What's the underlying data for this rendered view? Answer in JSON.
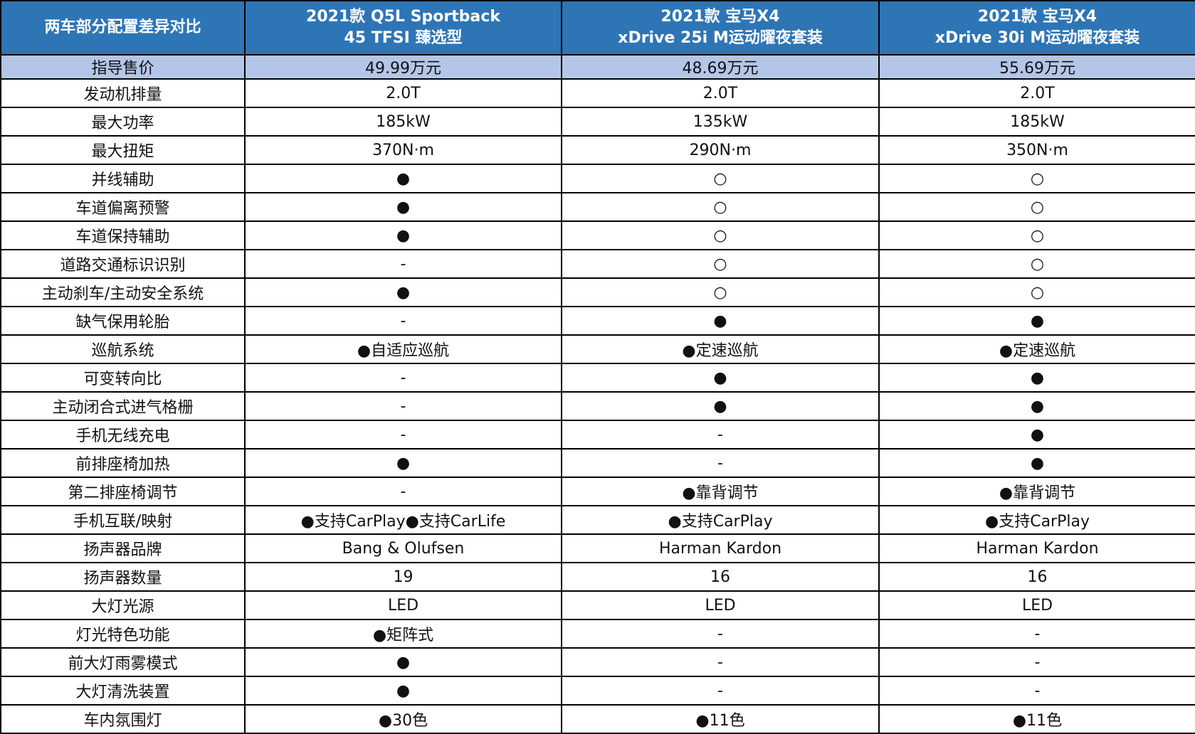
{
  "header": {
    "title": "两车部分配置差异对比",
    "cars": [
      {
        "line1": "2021款 Q5L Sportback",
        "line2": "45 TFSI 臻选型"
      },
      {
        "line1": "2021款 宝马X4",
        "line2": "xDrive 25i M运动曜夜套装"
      },
      {
        "line1": "2021款 宝马X4",
        "line2": "xDrive 30i M运动曜夜套装"
      }
    ]
  },
  "price": {
    "label": "指导售价",
    "values": [
      "49.99万元",
      "48.69万元",
      "55.69万元"
    ]
  },
  "rows": [
    {
      "label": "发动机排量",
      "values": [
        "2.0T",
        "2.0T",
        "2.0T"
      ]
    },
    {
      "label": "最大功率",
      "values": [
        "185kW",
        "135kW",
        "185kW"
      ]
    },
    {
      "label": "最大扭矩",
      "values": [
        "370N·m",
        "290N·m",
        "350N·m"
      ]
    },
    {
      "label": "并线辅助",
      "values": [
        "●",
        "○",
        "○"
      ]
    },
    {
      "label": "车道偏离预警",
      "values": [
        "●",
        "○",
        "○"
      ]
    },
    {
      "label": "车道保持辅助",
      "values": [
        "●",
        "○",
        "○"
      ]
    },
    {
      "label": "道路交通标识识别",
      "values": [
        "-",
        "○",
        "○"
      ]
    },
    {
      "label": "主动刹车/主动安全系统",
      "values": [
        "●",
        "○",
        "○"
      ]
    },
    {
      "label": "缺气保用轮胎",
      "values": [
        "-",
        "●",
        "●"
      ]
    },
    {
      "label": "巡航系统",
      "values": [
        "●自适应巡航",
        "●定速巡航",
        "●定速巡航"
      ]
    },
    {
      "label": "可变转向比",
      "values": [
        "-",
        "●",
        "●"
      ]
    },
    {
      "label": "主动闭合式进气格栅",
      "values": [
        "-",
        "●",
        "●"
      ]
    },
    {
      "label": "手机无线充电",
      "values": [
        "-",
        "-",
        "●"
      ]
    },
    {
      "label": "前排座椅加热",
      "values": [
        "●",
        "-",
        "●"
      ]
    },
    {
      "label": "第二排座椅调节",
      "values": [
        "-",
        "●靠背调节",
        "●靠背调节"
      ]
    },
    {
      "label": "手机互联/映射",
      "values": [
        "●支持CarPlay●支持CarLife",
        "●支持CarPlay",
        "●支持CarPlay"
      ]
    },
    {
      "label": "扬声器品牌",
      "values": [
        "Bang & Olufsen",
        "Harman Kardon",
        "Harman Kardon"
      ]
    },
    {
      "label": "扬声器数量",
      "values": [
        "19",
        "16",
        "16"
      ]
    },
    {
      "label": "大灯光源",
      "values": [
        "LED",
        "LED",
        "LED"
      ]
    },
    {
      "label": "灯光特色功能",
      "values": [
        "●矩阵式",
        "-",
        "-"
      ]
    },
    {
      "label": "前大灯雨雾模式",
      "values": [
        "●",
        "-",
        "-"
      ]
    },
    {
      "label": "大灯清洗装置",
      "values": [
        "●",
        "-",
        "-"
      ]
    },
    {
      "label": "车内氛围灯",
      "values": [
        "●30色",
        "●11色",
        "●11色"
      ]
    }
  ],
  "colors": {
    "header_bg": "#2e75b6",
    "price_bg": "#b4c6e7"
  }
}
